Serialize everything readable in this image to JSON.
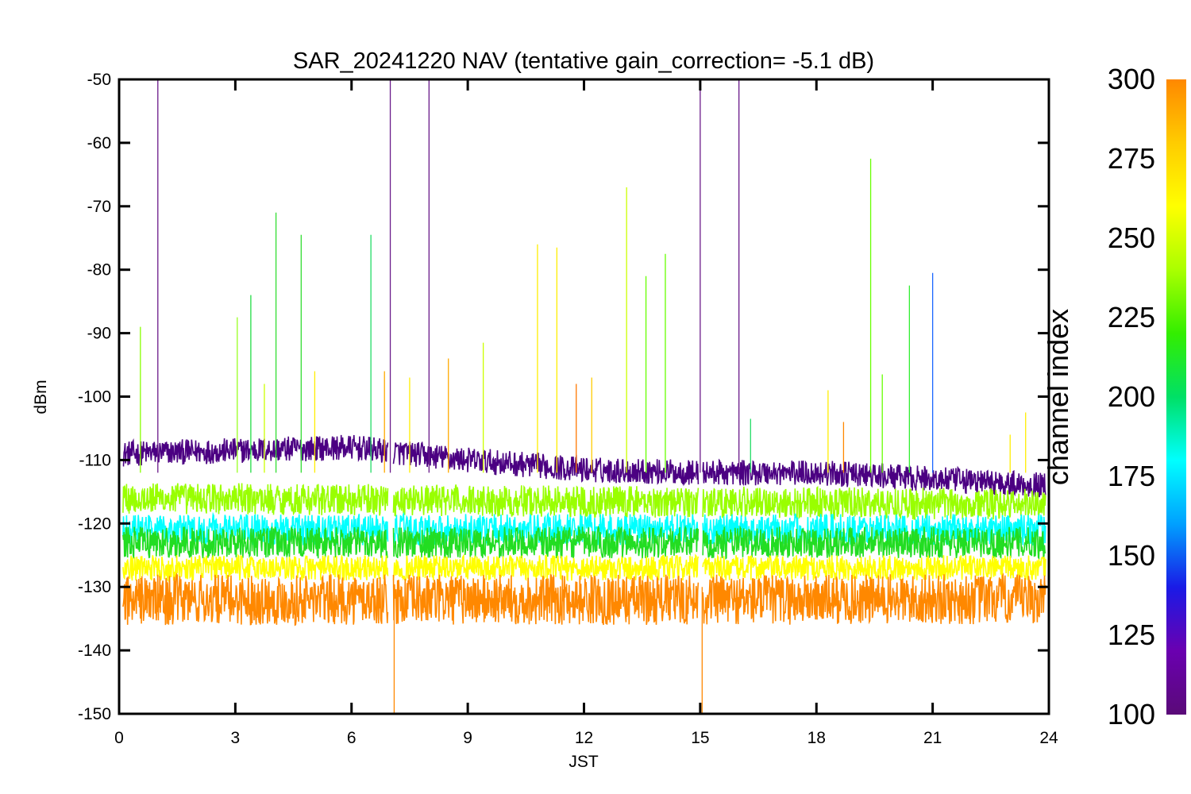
{
  "chart_data": {
    "type": "line",
    "title": "SAR_20241220 NAV (tentative gain_correction= -5.1 dB)",
    "xlabel": "JST",
    "ylabel": "dBm",
    "xlim": [
      0,
      24
    ],
    "ylim": [
      -150,
      -50
    ],
    "x_ticks": [
      "0",
      "3",
      "6",
      "9",
      "12",
      "15",
      "18",
      "21",
      "24"
    ],
    "y_ticks": [
      "-50",
      "-60",
      "-70",
      "-80",
      "-90",
      "-100",
      "-110",
      "-120",
      "-130",
      "-140",
      "-150"
    ],
    "grid": false,
    "colorbar": {
      "label": "channel index",
      "range": [
        100,
        300
      ],
      "ticks": [
        "300",
        "275",
        "250",
        "225",
        "200",
        "175",
        "150",
        "125",
        "100"
      ],
      "colormap": [
        "#5a0a78",
        "#6a00b0",
        "#1a1ae6",
        "#00a0ff",
        "#00ffff",
        "#00e066",
        "#33ee00",
        "#aaff00",
        "#ffff00",
        "#ffcc00",
        "#ff8800"
      ]
    },
    "data_gaps_hours": [
      7.0,
      15.0
    ],
    "bands": [
      {
        "channel_index": 105,
        "color": "#4b0082",
        "center_by_hour": [
          [
            0,
            -109
          ],
          [
            6,
            -108
          ],
          [
            9,
            -110
          ],
          [
            12,
            -111.5
          ],
          [
            15,
            -112
          ],
          [
            18,
            -112
          ],
          [
            24,
            -114
          ]
        ],
        "spread": 2
      },
      {
        "channel_index": 250,
        "color": "#99ff00",
        "center_by_hour": [
          [
            0,
            -116
          ],
          [
            24,
            -117
          ]
        ],
        "spread": 2.5
      },
      {
        "channel_index": 180,
        "color": "#00ffff",
        "center_by_hour": [
          [
            0,
            -121
          ],
          [
            24,
            -121
          ]
        ],
        "spread": 2.5
      },
      {
        "channel_index": 220,
        "color": "#22dd22",
        "center_by_hour": [
          [
            0,
            -123
          ],
          [
            24,
            -123
          ]
        ],
        "spread": 2.5
      },
      {
        "channel_index": 265,
        "color": "#ffff00",
        "center_by_hour": [
          [
            0,
            -127
          ],
          [
            24,
            -127
          ]
        ],
        "spread": 2
      },
      {
        "channel_index": 295,
        "color": "#ff8800",
        "center_by_hour": [
          [
            0,
            -132
          ],
          [
            24,
            -132
          ]
        ],
        "spread": 4
      }
    ],
    "spikes": [
      {
        "x": 0.55,
        "y": -89,
        "color": "#88ff00"
      },
      {
        "x": 1.0,
        "y": -50,
        "color": "#6a1a8a"
      },
      {
        "x": 3.05,
        "y": -87.5,
        "color": "#99ff22"
      },
      {
        "x": 3.4,
        "y": -84,
        "color": "#22dd44"
      },
      {
        "x": 3.75,
        "y": -98,
        "color": "#ccff00"
      },
      {
        "x": 4.05,
        "y": -71,
        "color": "#33dd33"
      },
      {
        "x": 4.7,
        "y": -74.5,
        "color": "#33dd33"
      },
      {
        "x": 5.05,
        "y": -96,
        "color": "#ffee00"
      },
      {
        "x": 6.5,
        "y": -74.5,
        "color": "#22dd66"
      },
      {
        "x": 6.85,
        "y": -96,
        "color": "#ffaa00"
      },
      {
        "x": 7.0,
        "y": -50,
        "color": "#6a1a8a"
      },
      {
        "x": 7.1,
        "y": -150,
        "color": "#ff8800"
      },
      {
        "x": 7.5,
        "y": -97,
        "color": "#ffee00"
      },
      {
        "x": 8.0,
        "y": -50,
        "color": "#6a1a8a"
      },
      {
        "x": 8.5,
        "y": -94,
        "color": "#ffaa00"
      },
      {
        "x": 9.4,
        "y": -91.5,
        "color": "#ccff00"
      },
      {
        "x": 10.8,
        "y": -76,
        "color": "#ffee00"
      },
      {
        "x": 11.3,
        "y": -76.5,
        "color": "#ffee00"
      },
      {
        "x": 11.8,
        "y": -98,
        "color": "#ff7700"
      },
      {
        "x": 12.2,
        "y": -97,
        "color": "#ffcc00"
      },
      {
        "x": 13.1,
        "y": -67,
        "color": "#ccff00"
      },
      {
        "x": 13.6,
        "y": -81,
        "color": "#66ff00"
      },
      {
        "x": 14.1,
        "y": -77.5,
        "color": "#66ff00"
      },
      {
        "x": 15.0,
        "y": -50,
        "color": "#6a1a8a"
      },
      {
        "x": 15.05,
        "y": -150,
        "color": "#ff8800"
      },
      {
        "x": 16.0,
        "y": -50,
        "color": "#6a1a8a"
      },
      {
        "x": 16.3,
        "y": -103.5,
        "color": "#22dd66"
      },
      {
        "x": 18.3,
        "y": -99,
        "color": "#ffee00"
      },
      {
        "x": 18.7,
        "y": -104,
        "color": "#ff8800"
      },
      {
        "x": 19.4,
        "y": -62.5,
        "color": "#66ff00"
      },
      {
        "x": 19.7,
        "y": -96.5,
        "color": "#66ff00"
      },
      {
        "x": 20.4,
        "y": -82.5,
        "color": "#33ee33"
      },
      {
        "x": 21.0,
        "y": -80.5,
        "color": "#1a66ff"
      },
      {
        "x": 23.0,
        "y": -106,
        "color": "#ffee00"
      },
      {
        "x": 23.4,
        "y": -102.5,
        "color": "#ffee00"
      }
    ]
  }
}
